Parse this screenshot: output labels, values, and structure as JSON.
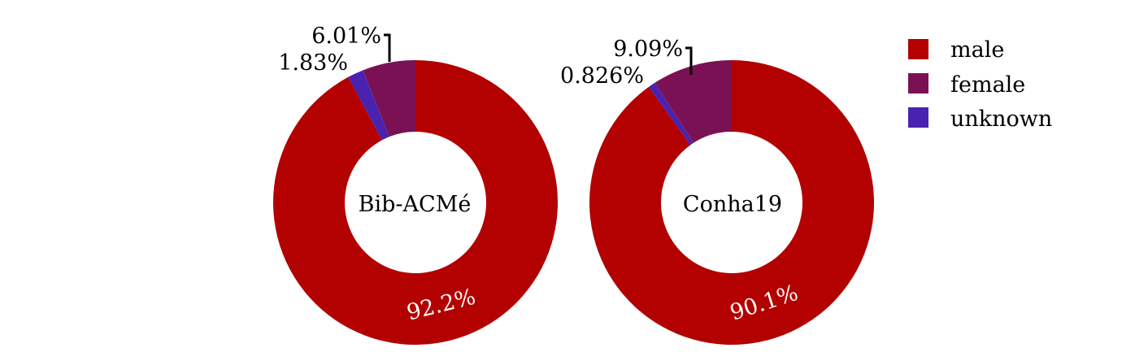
{
  "legend": {
    "items": [
      {
        "label": "male",
        "color": "#b30000"
      },
      {
        "label": "female",
        "color": "#7b1155"
      },
      {
        "label": "unknown",
        "color": "#4a22b0"
      }
    ]
  },
  "chart_data": [
    {
      "type": "pie",
      "center_label": "Bib-ACMé",
      "categories": [
        "male",
        "female",
        "unknown"
      ],
      "values": [
        92.2,
        6.01,
        1.83
      ],
      "labels": [
        "92.2%",
        "6.01%",
        "1.83%"
      ],
      "colors": [
        "#b30000",
        "#7b1155",
        "#4a22b0"
      ],
      "legend": "top-right"
    },
    {
      "type": "pie",
      "center_label": "Conha19",
      "categories": [
        "male",
        "female",
        "unknown"
      ],
      "values": [
        90.1,
        9.09,
        0.826
      ],
      "labels": [
        "90.1%",
        "9.09%",
        "0.826%"
      ],
      "colors": [
        "#b30000",
        "#7b1155",
        "#4a22b0"
      ],
      "legend": "top-right"
    }
  ]
}
